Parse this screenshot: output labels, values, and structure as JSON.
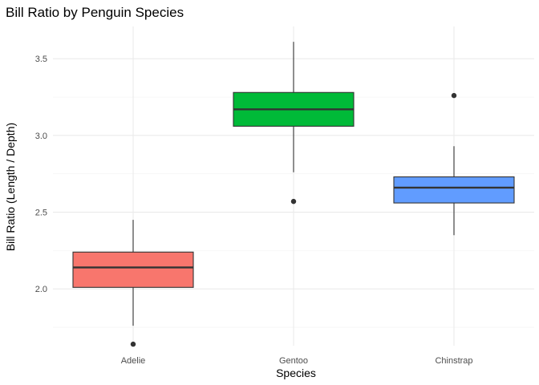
{
  "chart_data": {
    "type": "boxplot",
    "title": "Bill Ratio by Penguin Species",
    "xlabel": "Species",
    "ylabel": "Bill Ratio (Length / Depth)",
    "ylim": [
      1.63,
      3.71
    ],
    "yticks": [
      2.0,
      2.5,
      3.0,
      3.5
    ],
    "ytick_labels": [
      "2.0",
      "2.5",
      "3.0",
      "3.5"
    ],
    "grid": true,
    "legend": "none",
    "categories": [
      "Adelie",
      "Gentoo",
      "Chinstrap"
    ],
    "boxes": [
      {
        "category": "Adelie",
        "whisker_low": 1.76,
        "q1": 2.01,
        "median": 2.14,
        "q3": 2.24,
        "whisker_high": 2.45,
        "outliers": [
          1.64
        ],
        "color": "#F8766D"
      },
      {
        "category": "Gentoo",
        "whisker_low": 2.76,
        "q1": 3.06,
        "median": 3.17,
        "q3": 3.28,
        "whisker_high": 3.61,
        "outliers": [
          2.57
        ],
        "color": "#00BA38"
      },
      {
        "category": "Chinstrap",
        "whisker_low": 2.35,
        "q1": 2.56,
        "median": 2.66,
        "q3": 2.73,
        "whisker_high": 2.93,
        "outliers": [
          3.26
        ],
        "color": "#619CFF"
      }
    ]
  }
}
